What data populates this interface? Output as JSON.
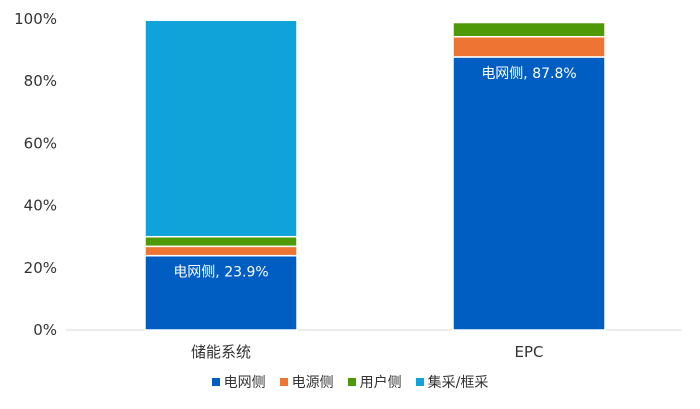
{
  "chart_data": {
    "type": "bar",
    "stacked": true,
    "categories": [
      "储能系统",
      "EPC"
    ],
    "series": [
      {
        "name": "电网侧",
        "color": "#005EC3",
        "values": [
          23.9,
          87.8
        ]
      },
      {
        "name": "电源侧",
        "color": "#ED7433",
        "values": [
          3.0,
          6.5
        ]
      },
      {
        "name": "用户侧",
        "color": "#4E9A06",
        "values": [
          3.1,
          4.6
        ]
      },
      {
        "name": "集采/框采",
        "color": "#10A3D9",
        "values": [
          69.6,
          0.4
        ]
      }
    ],
    "data_labels": [
      {
        "category": "储能系统",
        "series": "电网侧",
        "text": "电网侧, 23.9%"
      },
      {
        "category": "EPC",
        "series": "电网侧",
        "text": "电网侧, 87.8%"
      }
    ],
    "yticks": [
      "0%",
      "20%",
      "40%",
      "60%",
      "80%",
      "100%"
    ],
    "ylim": [
      0,
      100
    ],
    "title": "",
    "xlabel": "",
    "ylabel": "",
    "grid": false,
    "legend": "bottom"
  }
}
